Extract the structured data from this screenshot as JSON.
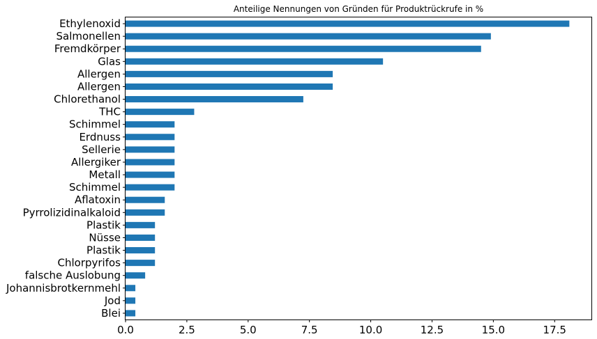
{
  "chart_data": {
    "type": "bar",
    "orientation": "horizontal",
    "title": "Anteilige Nennungen von Gründen für Produktrückrufe in %",
    "xlabel": "",
    "ylabel": "",
    "xlim": [
      0,
      19.0
    ],
    "xticks": [
      "0.0",
      "2.5",
      "5.0",
      "7.5",
      "10.0",
      "12.5",
      "15.0",
      "17.5"
    ],
    "xtick_values": [
      0,
      2.5,
      5.0,
      7.5,
      10.0,
      12.5,
      15.0,
      17.5
    ],
    "bar_color": "#1f77b4",
    "grid": false,
    "legend": "none",
    "categories": [
      "Ethylenoxid",
      "Salmonellen",
      "Fremdkörper",
      "Glas",
      "Allergen",
      "Allergen",
      "Chlorethanol",
      "THC",
      "Schimmel",
      "Erdnuss",
      "Sellerie",
      "Allergiker",
      "Metall",
      "Schimmel",
      "Aflatoxin",
      "Pyrrolizidinalkaloid",
      "Plastik",
      "Nüsse",
      "Plastik",
      "Chlorpyrifos",
      "falsche Auslobung",
      "Johannisbrotkernmehl",
      "Jod",
      "Blei"
    ],
    "values": [
      18.1,
      14.9,
      14.5,
      10.5,
      8.45,
      8.45,
      7.25,
      2.8,
      2.0,
      2.0,
      2.0,
      2.0,
      2.0,
      2.0,
      1.6,
      1.6,
      1.2,
      1.2,
      1.2,
      1.2,
      0.8,
      0.4,
      0.4,
      0.4
    ]
  }
}
